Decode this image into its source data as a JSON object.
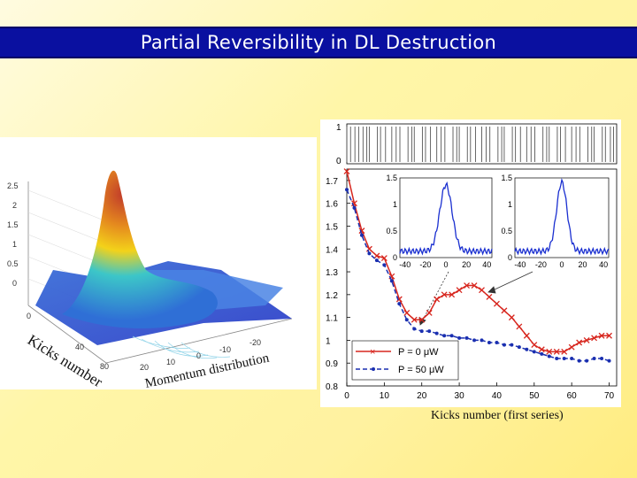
{
  "slide": {
    "title": "Partial Reversibility in DL Destruction",
    "caption": "Kicks number (first series)"
  },
  "surface_plot": {
    "z_ticks": [
      "2.5",
      "2",
      "1.5",
      "1",
      "0.5",
      "0"
    ],
    "kicks_ticks": [
      "0",
      "40",
      "80"
    ],
    "momentum_ticks": [
      "20",
      "10",
      "0",
      "-10",
      "-20"
    ],
    "kicks_axis_label": "Kicks number",
    "momentum_axis_label": "Momentum distribution",
    "colors": {
      "peak": "#c0392b",
      "body": "#2f6fd6",
      "base": "#3b4fd0"
    }
  },
  "kick_marks": {
    "y_ticks": [
      "1",
      "0"
    ]
  },
  "chart_data": {
    "type": "line",
    "xlabel": "",
    "ylabel": "",
    "xlim": [
      0,
      72
    ],
    "ylim": [
      0.8,
      1.75
    ],
    "x_ticks": [
      "0",
      "10",
      "20",
      "30",
      "40",
      "50",
      "60",
      "70"
    ],
    "y_ticks": [
      "0.8",
      "0.9",
      "1",
      "1.1",
      "1.2",
      "1.3",
      "1.4",
      "1.5",
      "1.6",
      "1.7"
    ],
    "legend_placement": "bottom-left",
    "series": [
      {
        "name": "P = 0  μW",
        "color": "#d7261e",
        "marker": "x",
        "x": [
          0,
          2,
          4,
          6,
          8,
          10,
          12,
          14,
          16,
          18,
          20,
          22,
          24,
          26,
          28,
          30,
          32,
          34,
          36,
          38,
          40,
          42,
          44,
          46,
          48,
          50,
          52,
          54,
          56,
          58,
          60,
          62,
          64,
          66,
          68,
          70
        ],
        "y": [
          1.74,
          1.6,
          1.48,
          1.4,
          1.37,
          1.36,
          1.28,
          1.18,
          1.12,
          1.09,
          1.09,
          1.12,
          1.18,
          1.2,
          1.2,
          1.22,
          1.24,
          1.24,
          1.22,
          1.19,
          1.16,
          1.13,
          1.1,
          1.06,
          1.02,
          0.98,
          0.96,
          0.95,
          0.95,
          0.95,
          0.97,
          0.99,
          1.0,
          1.01,
          1.02,
          1.02
        ]
      },
      {
        "name": "P = 50  μW",
        "color": "#1a2fb0",
        "marker": "dot",
        "x": [
          0,
          2,
          4,
          6,
          8,
          10,
          12,
          14,
          16,
          18,
          20,
          22,
          24,
          26,
          28,
          30,
          32,
          34,
          36,
          38,
          40,
          42,
          44,
          46,
          48,
          50,
          52,
          54,
          56,
          58,
          60,
          62,
          64,
          66,
          68,
          70
        ],
        "y": [
          1.66,
          1.58,
          1.46,
          1.38,
          1.35,
          1.33,
          1.26,
          1.16,
          1.09,
          1.05,
          1.04,
          1.04,
          1.03,
          1.02,
          1.02,
          1.01,
          1.01,
          1.0,
          1.0,
          0.99,
          0.99,
          0.98,
          0.98,
          0.97,
          0.96,
          0.95,
          0.94,
          0.93,
          0.92,
          0.92,
          0.92,
          0.91,
          0.91,
          0.92,
          0.92,
          0.91
        ]
      }
    ],
    "insets": [
      {
        "type": "line",
        "x_ticks": [
          "-40",
          "-20",
          "0",
          "20",
          "40"
        ],
        "y_ticks": [
          "1.5",
          "1",
          "0.5",
          "0"
        ],
        "xlim": [
          -45,
          45
        ],
        "ylim": [
          0,
          1.5
        ],
        "peak_x": 0,
        "peak_y": 1.35,
        "width": 6
      },
      {
        "type": "line",
        "x_ticks": [
          "-40",
          "-20",
          "0",
          "20",
          "40"
        ],
        "y_ticks": [
          "1.5",
          "1",
          "0.5",
          "0"
        ],
        "xlim": [
          -45,
          45
        ],
        "ylim": [
          0,
          1.5
        ],
        "peak_x": 0,
        "peak_y": 1.4,
        "width": 5
      }
    ]
  }
}
